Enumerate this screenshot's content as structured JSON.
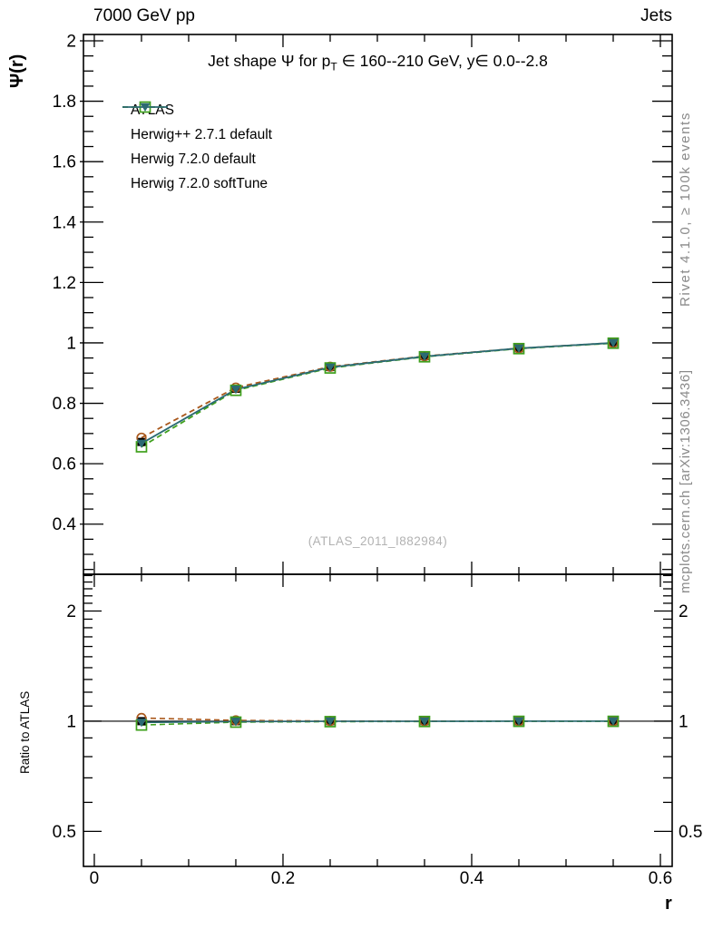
{
  "header": {
    "left": "7000 GeV pp",
    "right": "Jets"
  },
  "plot_title": {
    "part1": "Jet shape Ψ for p",
    "sub": "T",
    "part2": " ∈ 160--210 GeV, y∈ 0.0--2.8"
  },
  "watermark": "(ATLAS_2011_I882984)",
  "side_notes": {
    "top": "Rivet 4.1.0, ≥ 100k events",
    "bottom": "mcplots.cern.ch [arXiv:1306.3436]"
  },
  "colors": {
    "frame": "#000000",
    "atlas": "#000000",
    "herwigpp": "#a9581c",
    "herwig7_default": "#3fa01c",
    "herwig7_softtune": "#2b6a73",
    "side_text": "#8a8a8a",
    "watermark": "#b2b2b2"
  },
  "chart_data": {
    "type": "line",
    "title": "Jet shape Ψ for p_T ∈ 160--210 GeV, y∈ 0.0--2.8",
    "xlabel": "r",
    "ylabel": "Ψ(r)",
    "ratio_ylabel": "Ratio to ATLAS",
    "legend_position": "top-left-inside",
    "grid": false,
    "x": [
      0.05,
      0.15,
      0.25,
      0.35,
      0.45,
      0.55
    ],
    "series": [
      {
        "name": "ATLAS",
        "color": "#000000",
        "line": "none",
        "marker": "square-filled",
        "values": [
          0.672,
          0.848,
          0.92,
          0.956,
          0.982,
          1.0
        ],
        "ratio": [
          1.0,
          1.0,
          1.0,
          1.0,
          1.0,
          1.0
        ]
      },
      {
        "name": "Herwig++ 2.7.1 default",
        "color": "#a9581c",
        "line": "dashed",
        "marker": "circle-open",
        "values": [
          0.686,
          0.852,
          0.921,
          0.956,
          0.982,
          1.0
        ],
        "ratio": [
          1.02,
          1.005,
          1.001,
          1.0,
          1.0,
          1.0
        ]
      },
      {
        "name": "Herwig 7.2.0 default",
        "color": "#3fa01c",
        "line": "dashed",
        "marker": "square-open",
        "values": [
          0.656,
          0.843,
          0.917,
          0.954,
          0.981,
          0.999
        ],
        "ratio": [
          0.976,
          0.994,
          0.997,
          0.998,
          0.999,
          0.999
        ]
      },
      {
        "name": "Herwig 7.2.0 softTune",
        "color": "#2b6a73",
        "line": "solid",
        "marker": "triangle-down-filled",
        "values": [
          0.667,
          0.846,
          0.919,
          0.955,
          0.982,
          1.0
        ],
        "ratio": [
          0.992,
          0.997,
          0.999,
          0.999,
          1.0,
          1.0
        ]
      }
    ],
    "axes": {
      "x": {
        "min": -0.0115,
        "max": 0.6125,
        "scale": "linear",
        "minor_step": 0.05,
        "major": [
          {
            "v": 0,
            "label": "0"
          },
          {
            "v": 0.2,
            "label": "0.2"
          },
          {
            "v": 0.4,
            "label": "0.4"
          },
          {
            "v": 0.6,
            "label": "0.6"
          }
        ]
      },
      "y_main": {
        "min": 0.234,
        "max": 2.021,
        "scale": "linear",
        "minor_step": 0.05,
        "major": [
          {
            "v": 0.4,
            "label": "0.4"
          },
          {
            "v": 0.6,
            "label": "0.6"
          },
          {
            "v": 0.8,
            "label": "0.8"
          },
          {
            "v": 1,
            "label": "1"
          },
          {
            "v": 1.2,
            "label": "1.2"
          },
          {
            "v": 1.4,
            "label": "1.4"
          },
          {
            "v": 1.6,
            "label": "1.6"
          },
          {
            "v": 1.8,
            "label": "1.8"
          },
          {
            "v": 2,
            "label": "2"
          }
        ]
      },
      "y_ratio": {
        "min": 0.401,
        "max": 2.52,
        "scale": "log",
        "minor_step": 0.1,
        "major": [
          {
            "v": 0.5,
            "label": "0.5"
          },
          {
            "v": 1,
            "label": "1"
          },
          {
            "v": 2,
            "label": "2"
          }
        ],
        "reference_line": 1
      }
    }
  }
}
